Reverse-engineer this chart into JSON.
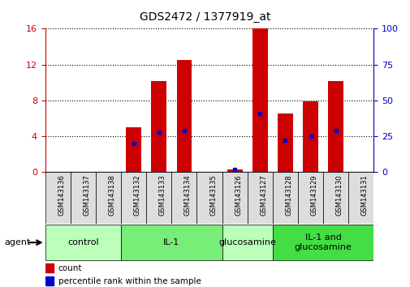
{
  "title": "GDS2472 / 1377919_at",
  "samples": [
    "GSM143136",
    "GSM143137",
    "GSM143138",
    "GSM143132",
    "GSM143133",
    "GSM143134",
    "GSM143135",
    "GSM143126",
    "GSM143127",
    "GSM143128",
    "GSM143129",
    "GSM143130",
    "GSM143131"
  ],
  "counts": [
    0,
    0,
    0,
    5.0,
    10.2,
    12.5,
    0,
    0.3,
    16.0,
    6.5,
    7.9,
    10.2,
    0
  ],
  "percentile_ranks": [
    0,
    0,
    0,
    20,
    28,
    29,
    0,
    2,
    41,
    22,
    25,
    29,
    0
  ],
  "groups": [
    {
      "label": "control",
      "start": 0,
      "end": 3,
      "color": "#bbffbb"
    },
    {
      "label": "IL-1",
      "start": 3,
      "end": 7,
      "color": "#77ee77"
    },
    {
      "label": "glucosamine",
      "start": 7,
      "end": 9,
      "color": "#bbffbb"
    },
    {
      "label": "IL-1 and\nglucosamine",
      "start": 9,
      "end": 13,
      "color": "#44dd44"
    }
  ],
  "ylim_left": [
    0,
    16
  ],
  "ylim_right": [
    0,
    100
  ],
  "yticks_left": [
    0,
    4,
    8,
    12,
    16
  ],
  "yticks_right": [
    0,
    25,
    50,
    75,
    100
  ],
  "bar_color": "#cc0000",
  "percentile_color": "#0000cc",
  "bar_width": 0.6,
  "background_color": "#ffffff",
  "grid_color": "#000000",
  "left_axis_color": "#cc0000",
  "right_axis_color": "#0000cc",
  "title_fontsize": 10,
  "tick_fontsize": 8,
  "label_fontsize": 6,
  "group_fontsize": 8,
  "legend_fontsize": 7.5
}
